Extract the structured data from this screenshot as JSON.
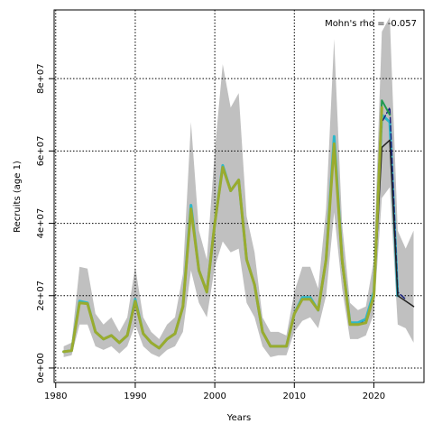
{
  "chart_data": {
    "type": "line",
    "xlabel": "Years",
    "ylabel": "Recruits (age 1)",
    "annotation": "Mohn's rho = -0.057",
    "xlim": [
      1979.8,
      2026.3
    ],
    "ylim": [
      -4000000,
      99000000
    ],
    "x_ticks": [
      1980,
      1990,
      2000,
      2010,
      2020
    ],
    "x_tick_labels": [
      "1980",
      "1990",
      "2000",
      "2010",
      "2020"
    ],
    "y_ticks": [
      0,
      20000000,
      40000000,
      60000000,
      80000000
    ],
    "y_tick_labels": [
      "0e+00",
      "2e+07",
      "4e+07",
      "6e+07",
      "8e+07"
    ],
    "grid": true,
    "grid_style": "dotted",
    "band": {
      "color": "#c0c0c0",
      "x": [
        1981,
        1982,
        1983,
        1984,
        1985,
        1986,
        1987,
        1988,
        1989,
        1990,
        1991,
        1992,
        1993,
        1994,
        1995,
        1996,
        1997,
        1998,
        1999,
        2000,
        2001,
        2002,
        2003,
        2004,
        2005,
        2006,
        2007,
        2008,
        2009,
        2010,
        2011,
        2012,
        2013,
        2014,
        2015,
        2016,
        2017,
        2018,
        2019,
        2020,
        2021,
        2022,
        2023,
        2024,
        2025
      ],
      "lower": [
        3000000,
        3500000,
        12000000,
        12000000,
        6000000,
        5000000,
        6000000,
        4000000,
        6000000,
        12000000,
        6000000,
        4000000,
        3000000,
        5000000,
        6000000,
        10000000,
        27000000,
        18000000,
        14000000,
        28000000,
        35000000,
        32000000,
        33000000,
        18000000,
        14000000,
        6000000,
        3000000,
        3500000,
        3500000,
        10000000,
        13000000,
        14000000,
        11000000,
        20000000,
        43000000,
        22000000,
        8000000,
        8000000,
        9000000,
        15000000,
        47000000,
        50000000,
        12000000,
        11000000,
        7000000
      ],
      "upper": [
        6000000,
        7000000,
        28000000,
        27500000,
        15000000,
        12000000,
        14000000,
        10000000,
        14000000,
        28000000,
        14000000,
        10000000,
        8000000,
        12000000,
        14000000,
        26000000,
        68000000,
        38000000,
        30000000,
        60000000,
        84000000,
        72000000,
        76000000,
        42000000,
        32000000,
        14000000,
        10000000,
        10000000,
        9000000,
        21000000,
        28000000,
        28000000,
        22000000,
        44000000,
        91000000,
        40000000,
        18000000,
        16000000,
        17000000,
        30000000,
        93000000,
        97000000,
        38000000,
        33000000,
        38000000
      ]
    },
    "series": [
      {
        "color": "#2eb7c9",
        "width": 3,
        "dash": "",
        "x": [
          1981,
          1982,
          1983,
          1984,
          1985,
          1986,
          1987,
          1988,
          1989,
          1990,
          1991,
          1992,
          1993,
          1994,
          1995,
          1996,
          1997,
          1998,
          1999,
          2000,
          2001,
          2002,
          2003,
          2004,
          2005,
          2006,
          2007,
          2008,
          2009,
          2010,
          2011,
          2012,
          2013,
          2014,
          2015,
          2016,
          2017,
          2018,
          2019,
          2020,
          2021,
          2022,
          2023
        ],
        "values": [
          4500000,
          4800000,
          18500000,
          18000000,
          10000000,
          8000000,
          9000000,
          7000000,
          9000000,
          19000000,
          9500000,
          7000000,
          5500000,
          8000000,
          9500000,
          17000000,
          45000000,
          27000000,
          21000000,
          40000000,
          56000000,
          49000000,
          52000000,
          30000000,
          23000000,
          10000000,
          6000000,
          6000000,
          6000000,
          15000000,
          19500000,
          19500000,
          16000000,
          30000000,
          64000000,
          30000000,
          12500000,
          12500000,
          13500000,
          21000000,
          70000000,
          68000000,
          20000000
        ]
      },
      {
        "color": "#1a237e",
        "width": 1.5,
        "dash": "6,3",
        "x": [
          2018,
          2019,
          2020,
          2021,
          2022,
          2023,
          2024
        ],
        "values": [
          12000000,
          13000000,
          20000000,
          68000000,
          72000000,
          21000000,
          19000000
        ]
      },
      {
        "color": "#1f9a4f",
        "width": 2,
        "dash": "",
        "x": [
          2016,
          2017,
          2018,
          2019,
          2020,
          2021,
          2022
        ],
        "values": [
          29000000,
          12000000,
          12000000,
          12500000,
          20000000,
          74000000,
          70000000
        ]
      },
      {
        "color": "#222222",
        "width": 1.5,
        "dash": "",
        "x": [
          2019,
          2020,
          2021,
          2022,
          2023,
          2024,
          2025
        ],
        "values": [
          13000000,
          20000000,
          61000000,
          63000000,
          20000000,
          18500000,
          17000000
        ]
      },
      {
        "color": "#9aab2e",
        "width": 3,
        "dash": "",
        "x": [
          1981,
          1982,
          1983,
          1984,
          1985,
          1986,
          1987,
          1988,
          1989,
          1990,
          1991,
          1992,
          1993,
          1994,
          1995,
          1996,
          1997,
          1998,
          1999,
          2000,
          2001,
          2002,
          2003,
          2004,
          2005,
          2006,
          2007,
          2008,
          2009,
          2010,
          2011,
          2012,
          2013,
          2014,
          2015,
          2016,
          2017,
          2018,
          2019,
          2020,
          2021
        ],
        "values": [
          4500000,
          4800000,
          18000000,
          17800000,
          10000000,
          8000000,
          9000000,
          7000000,
          9000000,
          18500000,
          9500000,
          7000000,
          5500000,
          8000000,
          9500000,
          17000000,
          44000000,
          27000000,
          21000000,
          40000000,
          55500000,
          49000000,
          52000000,
          30000000,
          23000000,
          10000000,
          6000000,
          6000000,
          6000000,
          15000000,
          19000000,
          19000000,
          16000000,
          30000000,
          62000000,
          30000000,
          12000000,
          12000000,
          12500000,
          20000000,
          72000000
        ]
      }
    ]
  }
}
